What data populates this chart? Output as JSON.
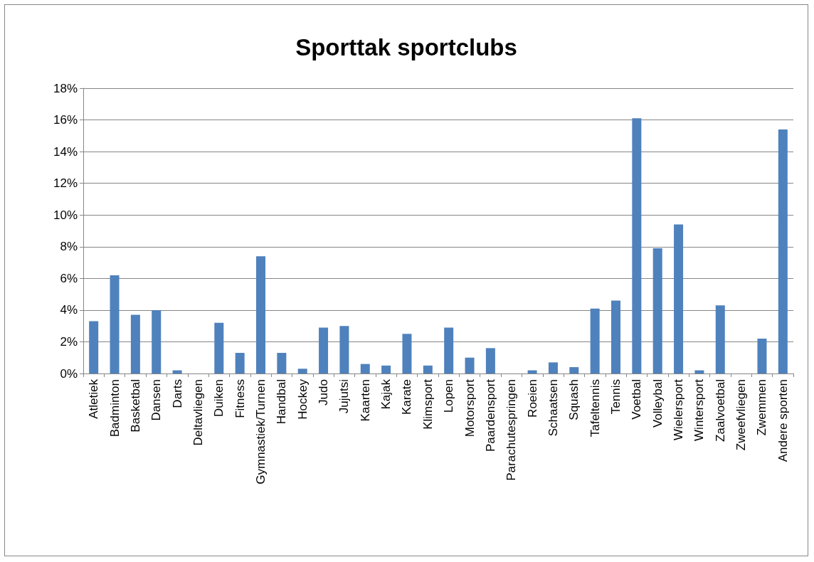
{
  "chart_data": {
    "type": "bar",
    "title": "Sporttak sportclubs",
    "categories": [
      "Atletiek",
      "Badminton",
      "Basketbal",
      "Dansen",
      "Darts",
      "Deltavliegen",
      "Duiken",
      "Fitness",
      "Gymnastiek/Turnen",
      "Handbal",
      "Hockey",
      "Judo",
      "Jujutsi",
      "Kaarten",
      "Kajak",
      "Karate",
      "Klimsport",
      "Lopen",
      "Motorsport",
      "Paardensport",
      "Parachutespringen",
      "Roeien",
      "Schaatsen",
      "Squash",
      "Tafeltennis",
      "Tennis",
      "Voetbal",
      "Volleybal",
      "Wielersport",
      "Wintersport",
      "Zaalvoetbal",
      "Zweefvliegen",
      "Zwemmen",
      "Andere sporten"
    ],
    "values": [
      3.3,
      6.2,
      3.7,
      4.0,
      0.2,
      0,
      3.2,
      1.3,
      7.4,
      1.3,
      0.3,
      2.9,
      3.0,
      0.6,
      0.5,
      2.5,
      0.5,
      2.9,
      1.0,
      1.6,
      0,
      0.2,
      0.7,
      0.4,
      4.1,
      4.6,
      16.1,
      7.9,
      9.4,
      0.2,
      4.3,
      0,
      2.2,
      15.4
    ],
    "color": "#4f81bd",
    "ylim": [
      0,
      18
    ],
    "yticks": [
      {
        "value": 0,
        "label": "0%"
      },
      {
        "value": 2,
        "label": "2%"
      },
      {
        "value": 4,
        "label": "4%"
      },
      {
        "value": 6,
        "label": "6%"
      },
      {
        "value": 8,
        "label": "8%"
      },
      {
        "value": 10,
        "label": "10%"
      },
      {
        "value": 12,
        "label": "12%"
      },
      {
        "value": 14,
        "label": "14%"
      },
      {
        "value": 16,
        "label": "16%"
      },
      {
        "value": 18,
        "label": "18%"
      }
    ],
    "grid": "y"
  }
}
